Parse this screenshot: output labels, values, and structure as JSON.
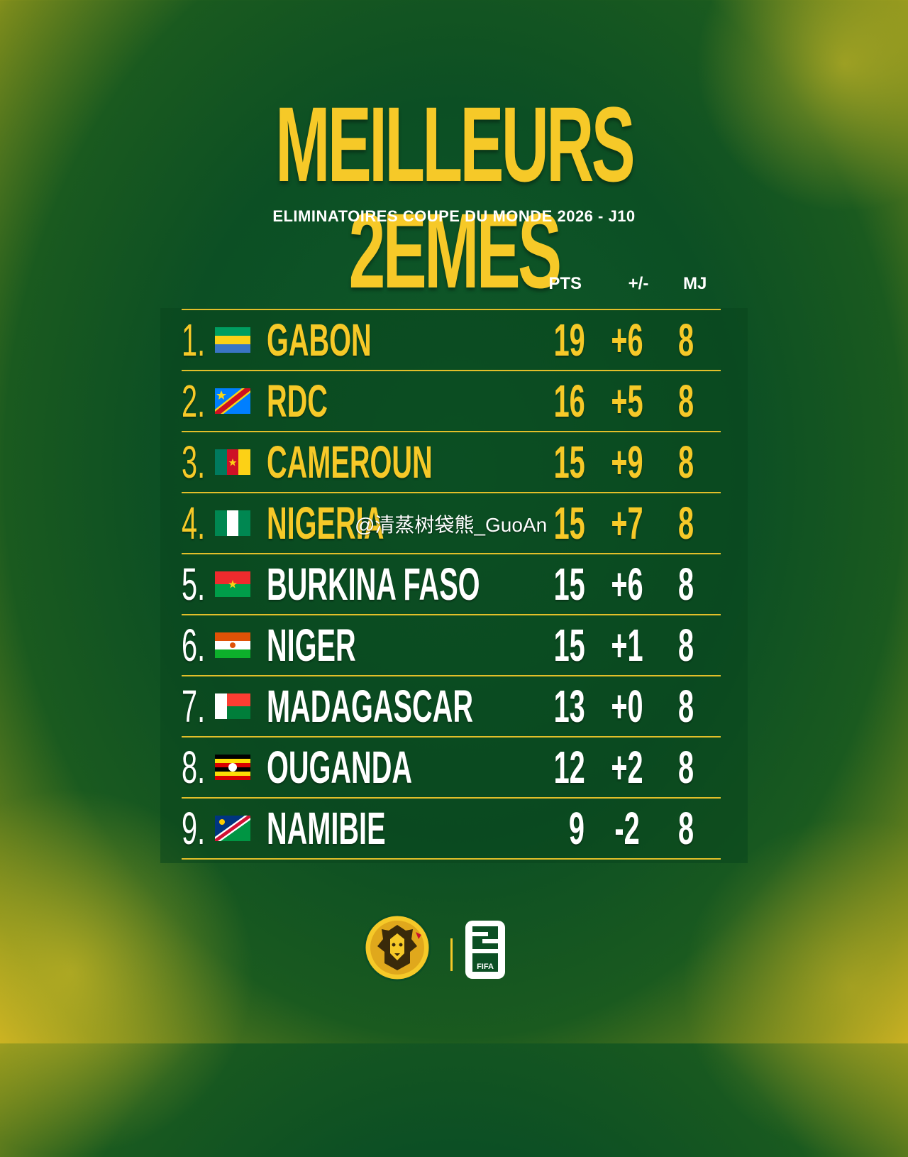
{
  "title": "MEILLEURS 2EMES",
  "subtitle": "ELIMINATOIRES COUPE DU MONDE 2026 - J10",
  "columns": {
    "pts": "PTS",
    "gd": "+/-",
    "mj": "MJ"
  },
  "rows": [
    {
      "rank": "1.",
      "team": "GABON",
      "flag": "gabon-flag",
      "pts": "19",
      "gd": "+6",
      "mj": "8",
      "highlight": true
    },
    {
      "rank": "2.",
      "team": "RDC",
      "flag": "rdc-flag",
      "pts": "16",
      "gd": "+5",
      "mj": "8",
      "highlight": true
    },
    {
      "rank": "3.",
      "team": "CAMEROUN",
      "flag": "cameroon-flag",
      "pts": "15",
      "gd": "+9",
      "mj": "8",
      "highlight": true
    },
    {
      "rank": "4.",
      "team": "NIGERIA",
      "flag": "nigeria-flag",
      "pts": "15",
      "gd": "+7",
      "mj": "8",
      "highlight": true
    },
    {
      "rank": "5.",
      "team": "BURKINA FASO",
      "flag": "burkina-faso-flag",
      "pts": "15",
      "gd": "+6",
      "mj": "8",
      "highlight": false
    },
    {
      "rank": "6.",
      "team": "NIGER",
      "flag": "niger-flag",
      "pts": "15",
      "gd": "+1",
      "mj": "8",
      "highlight": false
    },
    {
      "rank": "7.",
      "team": "MADAGASCAR",
      "flag": "madagascar-flag",
      "pts": "13",
      "gd": "+0",
      "mj": "8",
      "highlight": false
    },
    {
      "rank": "8.",
      "team": "OUGANDA",
      "flag": "uganda-flag",
      "pts": "12",
      "gd": "+2",
      "mj": "8",
      "highlight": false
    },
    {
      "rank": "9.",
      "team": "NAMIBIE",
      "flag": "namibia-flag",
      "pts": "9",
      "gd": "-2",
      "mj": "8",
      "highlight": false
    }
  ],
  "watermark": "@清蒸树袋熊_GuoAn",
  "logos": {
    "federation": "lion-crest-logo",
    "tournament": "fifa-2026-logo",
    "fifa_text": "FIFA"
  },
  "colors": {
    "accent": "#f6c928",
    "background": "#0c4f24"
  }
}
